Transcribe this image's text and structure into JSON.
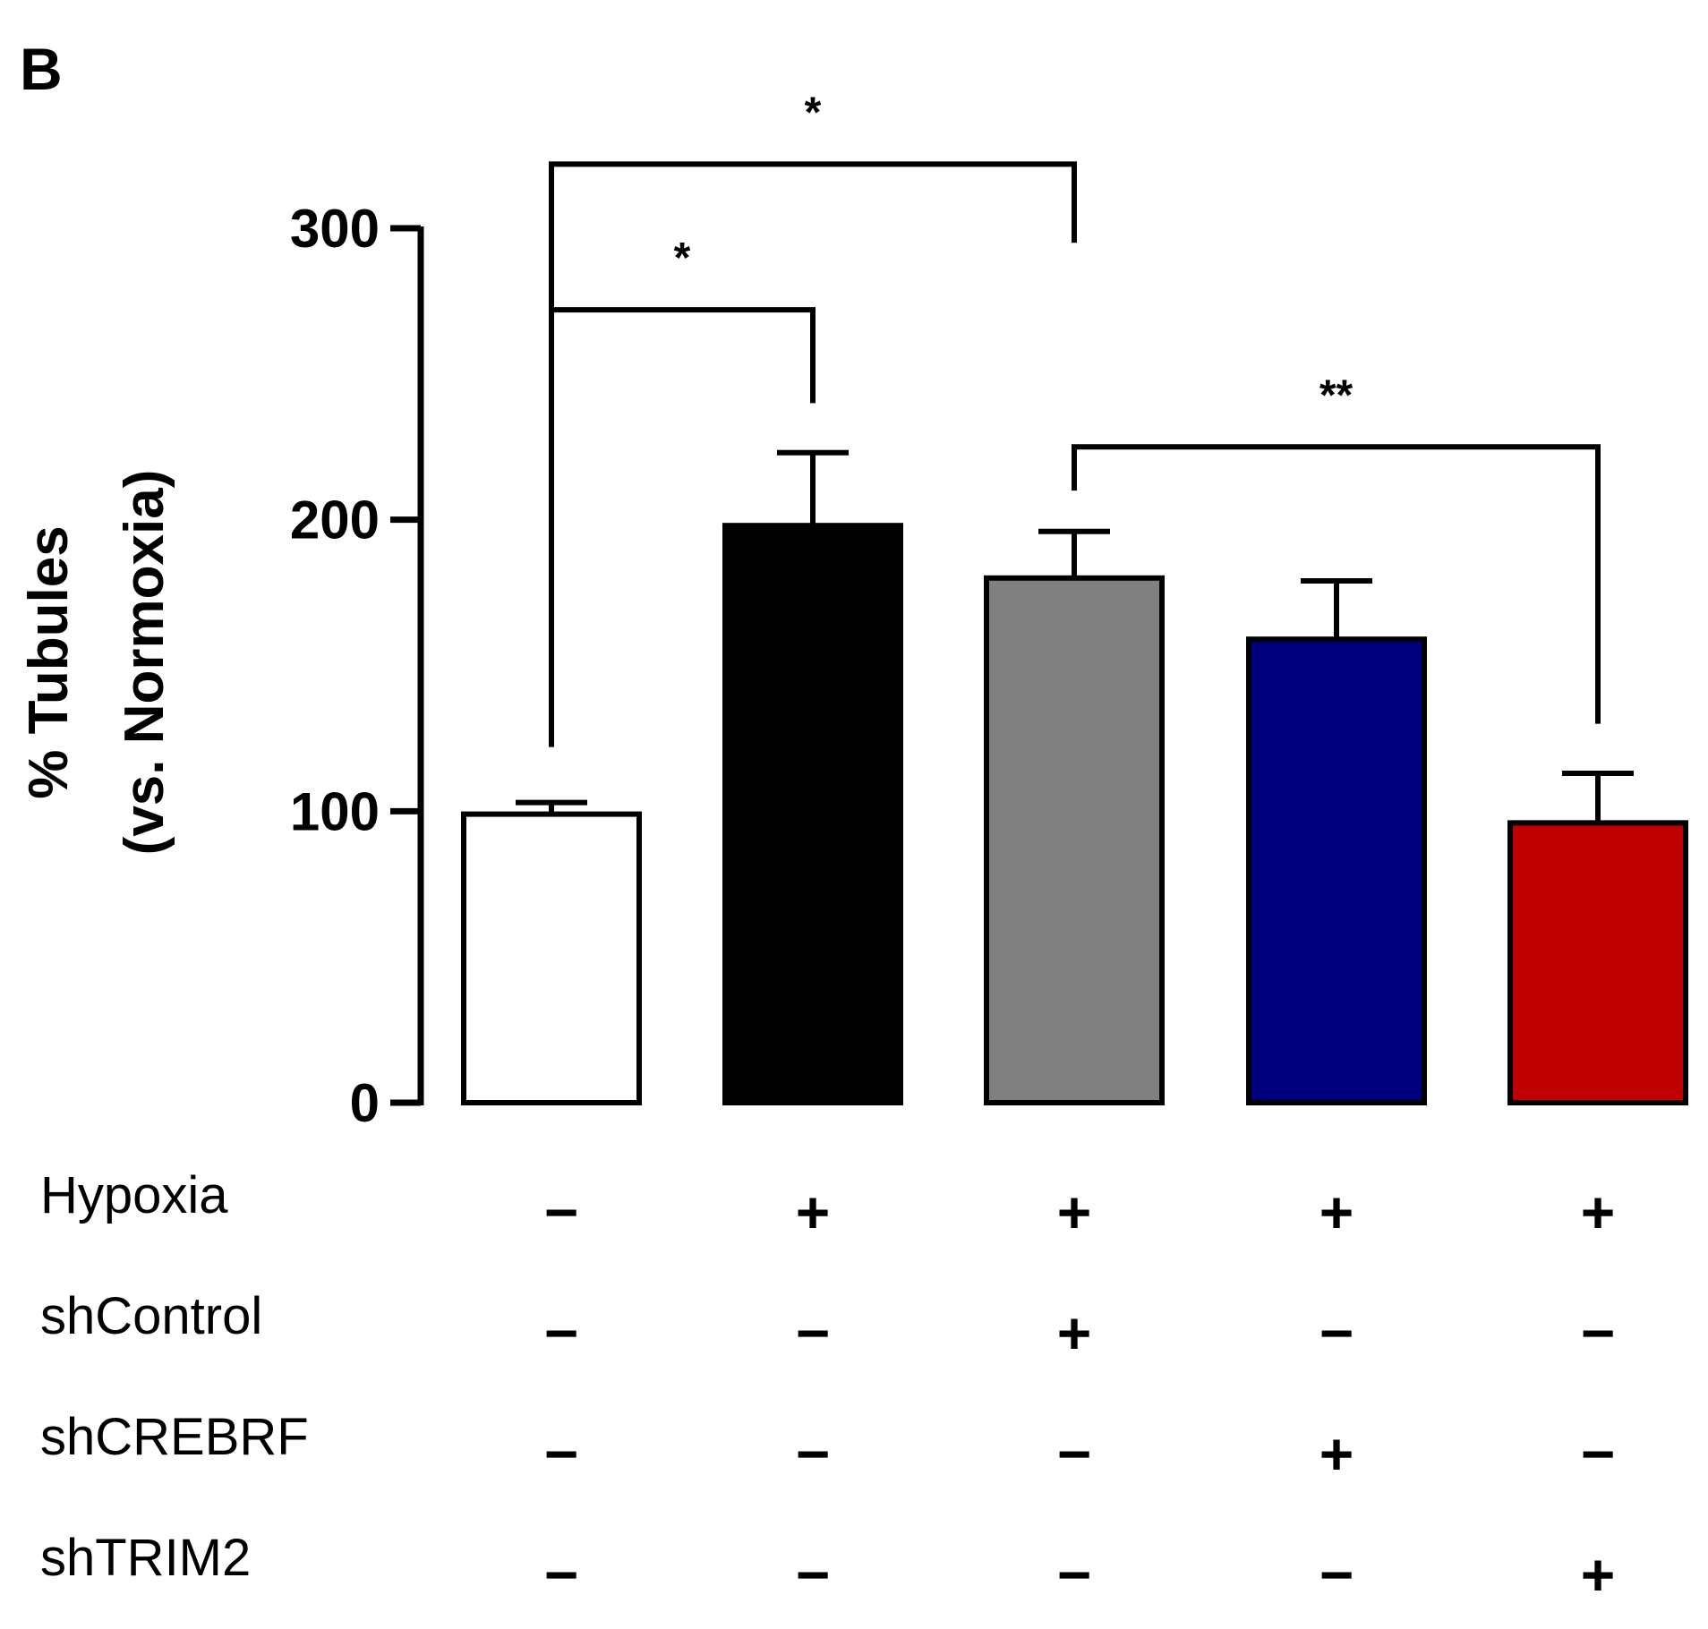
{
  "panel_label": "B",
  "chart_data": {
    "type": "bar",
    "ylabel_line1": "% Tubules",
    "ylabel_line2": "(vs. Normoxia)",
    "ylim": [
      0,
      300
    ],
    "yticks": [
      0,
      100,
      200,
      300
    ],
    "ytick_labels": [
      "0",
      "100",
      "200",
      "300"
    ],
    "categories": [
      "Normoxia",
      "Hypoxia",
      "Hypoxia + shControl",
      "Hypoxia + shCREBRF",
      "Hypoxia + shTRIM2"
    ],
    "values": [
      99,
      198,
      180,
      159,
      96
    ],
    "errors": [
      4,
      25,
      16,
      20,
      17
    ],
    "colors": [
      "#ffffff",
      "#000000",
      "#808080",
      "#00007f",
      "#c00000"
    ],
    "significance": [
      {
        "from": 0,
        "to": 2,
        "label": "*",
        "left_end": 122,
        "right_end": 295,
        "bracket_y": 322
      },
      {
        "from": 0,
        "to": 1,
        "label": "*",
        "left_end": 124,
        "right_end": 240,
        "bracket_y": 272
      },
      {
        "from": 2,
        "to": 4,
        "label": "**",
        "left_end": 210,
        "right_end": 130,
        "bracket_y": 225
      }
    ],
    "condition_table": {
      "rows": [
        {
          "label": "Hypoxia",
          "signs": [
            "−",
            "+",
            "+",
            "+",
            "+"
          ]
        },
        {
          "label": "shControl",
          "signs": [
            "−",
            "−",
            "+",
            "−",
            "−"
          ]
        },
        {
          "label": "shCREBRF",
          "signs": [
            "−",
            "−",
            "−",
            "+",
            "−"
          ]
        },
        {
          "label": "shTRIM2",
          "signs": [
            "−",
            "−",
            "−",
            "−",
            "+"
          ]
        }
      ]
    }
  }
}
